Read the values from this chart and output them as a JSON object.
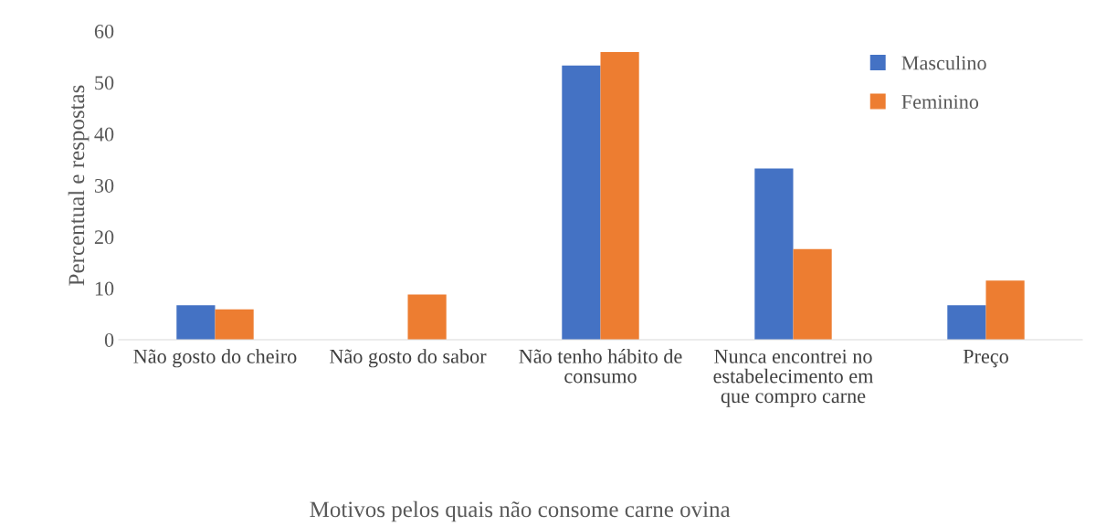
{
  "chart_data": {
    "type": "bar",
    "categories": [
      "Não gosto do cheiro",
      "Não gosto do sabor",
      "Não tenho hábito de consumo",
      "Nunca encontrei no estabelecimento em que compro carne",
      "Preço"
    ],
    "series": [
      {
        "name": "Masculino",
        "color": "#4472c4",
        "values": [
          6.7,
          0,
          53.3,
          33.3,
          6.7
        ]
      },
      {
        "name": "Feminino",
        "color": "#ed7d31",
        "values": [
          5.9,
          8.8,
          55.9,
          17.6,
          11.5
        ]
      }
    ],
    "xlabel": "Motivos pelos quais não consome carne ovina",
    "ylabel": "Percentual e respostas",
    "ylim": [
      0,
      60
    ],
    "yticks": [
      0,
      10,
      20,
      30,
      40,
      50,
      60
    ],
    "grid": false,
    "legend": "top right"
  }
}
